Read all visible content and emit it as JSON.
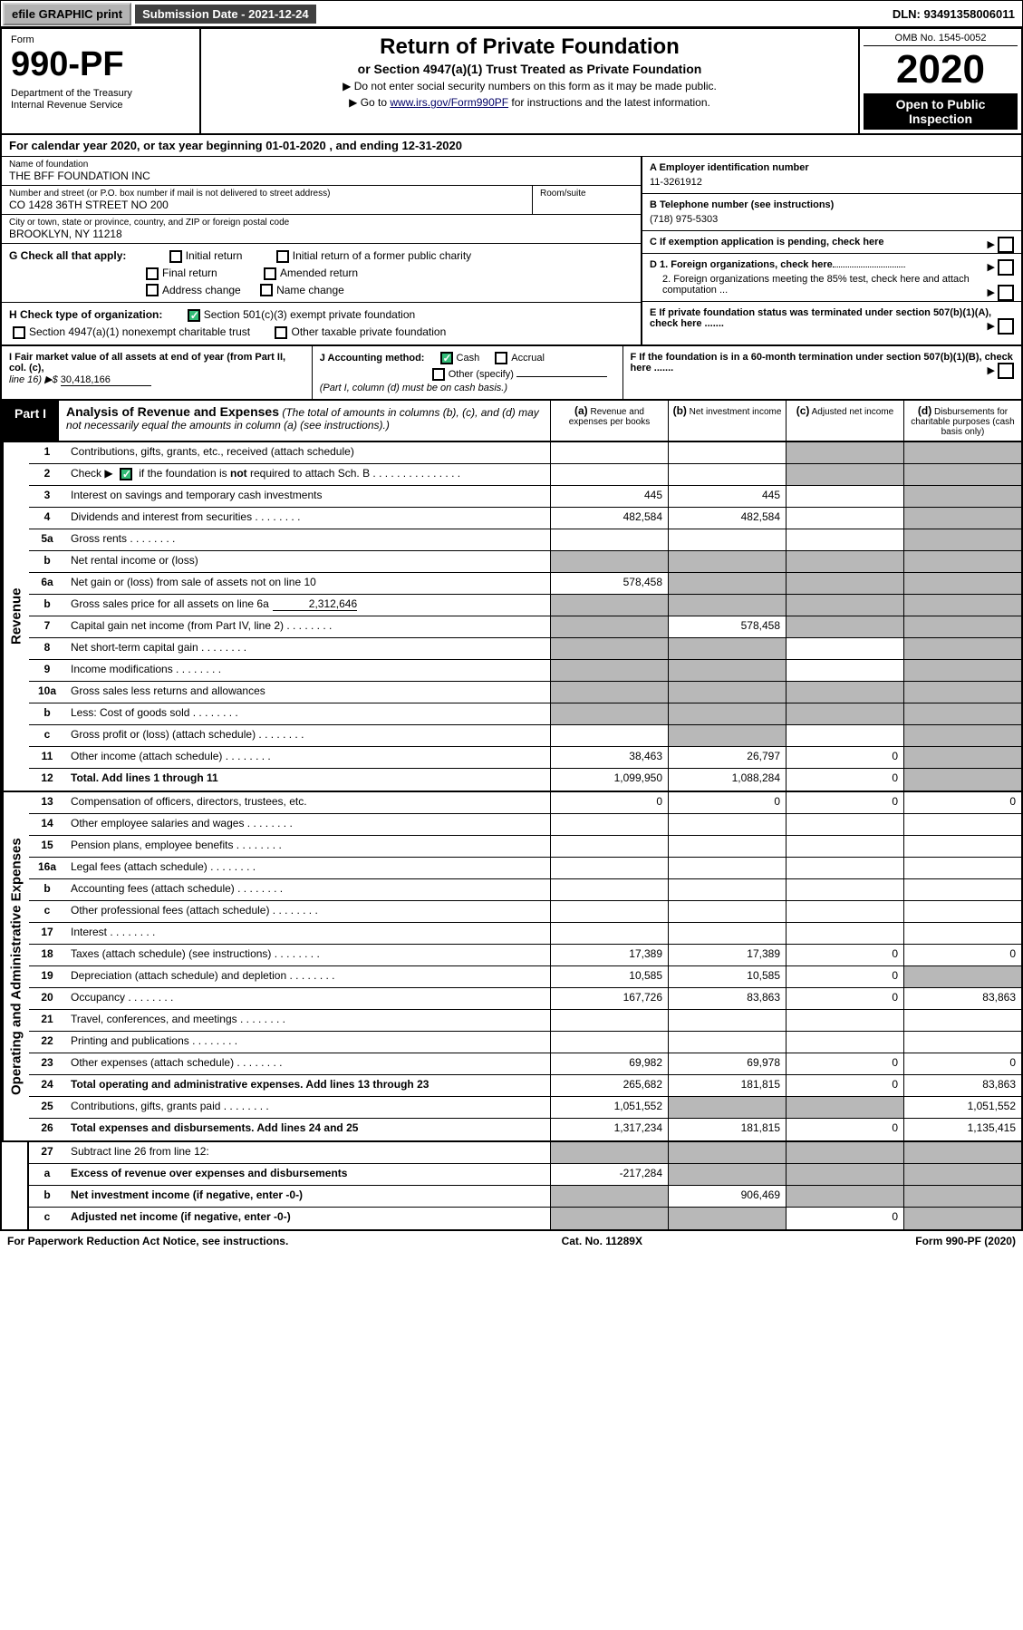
{
  "topbar": {
    "efile": "efile GRAPHIC print",
    "submission": "Submission Date - 2021-12-24",
    "dln": "DLN: 93491358006011"
  },
  "header": {
    "form_label": "Form",
    "form_number": "990-PF",
    "dept": "Department of the Treasury\nInternal Revenue Service",
    "title": "Return of Private Foundation",
    "subtitle": "or Section 4947(a)(1) Trust Treated as Private Foundation",
    "note1": "▶ Do not enter social security numbers on this form as it may be made public.",
    "note2_pre": "▶ Go to ",
    "note2_link": "www.irs.gov/Form990PF",
    "note2_post": " for instructions and the latest information.",
    "omb": "OMB No. 1545-0052",
    "year": "2020",
    "open": "Open to Public Inspection"
  },
  "cal_year": "For calendar year 2020, or tax year beginning 01-01-2020                        , and ending 12-31-2020",
  "foundation": {
    "name_label": "Name of foundation",
    "name": "THE BFF FOUNDATION INC",
    "addr_label": "Number and street (or P.O. box number if mail is not delivered to street address)",
    "addr": "CO 1428 36TH STREET NO 200",
    "room_label": "Room/suite",
    "city_label": "City or town, state or province, country, and ZIP or foreign postal code",
    "city": "BROOKLYN, NY  11218"
  },
  "ein": {
    "label": "A Employer identification number",
    "value": "11-3261912"
  },
  "phone": {
    "label": "B Telephone number (see instructions)",
    "value": "(718) 975-5303"
  },
  "boxC": "C If exemption application is pending, check here",
  "boxG": {
    "label": "G Check all that apply:",
    "opts": [
      "Initial return",
      "Initial return of a former public charity",
      "Final return",
      "Amended return",
      "Address change",
      "Name change"
    ]
  },
  "boxD": {
    "d1": "D 1. Foreign organizations, check here",
    "d2": "2. Foreign organizations meeting the 85% test, check here and attach computation ..."
  },
  "boxH": {
    "label": "H Check type of organization:",
    "opt1": "Section 501(c)(3) exempt private foundation",
    "opt2": "Section 4947(a)(1) nonexempt charitable trust",
    "opt3": "Other taxable private foundation"
  },
  "boxE": "E  If private foundation status was terminated under section 507(b)(1)(A), check here .......",
  "boxI": {
    "label": "I Fair market value of all assets at end of year (from Part II, col. (c),",
    "line": "line 16) ▶$ ",
    "value": "30,418,166"
  },
  "boxJ": {
    "label": "J Accounting method:",
    "cash": "Cash",
    "accrual": "Accrual",
    "other": "Other (specify)",
    "note": "(Part I, column (d) must be on cash basis.)"
  },
  "boxF": "F  If the foundation is in a 60-month termination under section 507(b)(1)(B), check here .......",
  "part1": {
    "label": "Part I",
    "title": "Analysis of Revenue and Expenses",
    "note": "(The total of amounts in columns (b), (c), and (d) may not necessarily equal the amounts in column (a) (see instructions).)",
    "col_a": "(a)  Revenue and expenses per books",
    "col_b": "(b)  Net investment income",
    "col_c": "(c)  Adjusted net income",
    "col_d": "(d)  Disbursements for charitable purposes (cash basis only)"
  },
  "side_rev": "Revenue",
  "side_exp": "Operating and Administrative Expenses",
  "rows": {
    "r1": {
      "no": "1",
      "desc": "Contributions, gifts, grants, etc., received (attach schedule)"
    },
    "r2": {
      "no": "2",
      "desc": "Check ▶        if the foundation is not required to attach Sch. B"
    },
    "r3": {
      "no": "3",
      "desc": "Interest on savings and temporary cash investments",
      "a": "445",
      "b": "445"
    },
    "r4": {
      "no": "4",
      "desc": "Dividends and interest from securities",
      "a": "482,584",
      "b": "482,584"
    },
    "r5a": {
      "no": "5a",
      "desc": "Gross rents"
    },
    "r5b": {
      "no": "b",
      "desc": "Net rental income or (loss)"
    },
    "r6a": {
      "no": "6a",
      "desc": "Net gain or (loss) from sale of assets not on line 10",
      "a": "578,458"
    },
    "r6b": {
      "no": "b",
      "desc": "Gross sales price for all assets on line 6a",
      "inline": "2,312,646"
    },
    "r7": {
      "no": "7",
      "desc": "Capital gain net income (from Part IV, line 2)",
      "b": "578,458"
    },
    "r8": {
      "no": "8",
      "desc": "Net short-term capital gain"
    },
    "r9": {
      "no": "9",
      "desc": "Income modifications"
    },
    "r10a": {
      "no": "10a",
      "desc": "Gross sales less returns and allowances"
    },
    "r10b": {
      "no": "b",
      "desc": "Less: Cost of goods sold"
    },
    "r10c": {
      "no": "c",
      "desc": "Gross profit or (loss) (attach schedule)"
    },
    "r11": {
      "no": "11",
      "desc": "Other income (attach schedule)",
      "a": "38,463",
      "b": "26,797",
      "c": "0"
    },
    "r12": {
      "no": "12",
      "desc": "Total. Add lines 1 through 11",
      "a": "1,099,950",
      "b": "1,088,284",
      "c": "0"
    },
    "r13": {
      "no": "13",
      "desc": "Compensation of officers, directors, trustees, etc.",
      "a": "0",
      "b": "0",
      "c": "0",
      "d": "0"
    },
    "r14": {
      "no": "14",
      "desc": "Other employee salaries and wages"
    },
    "r15": {
      "no": "15",
      "desc": "Pension plans, employee benefits"
    },
    "r16a": {
      "no": "16a",
      "desc": "Legal fees (attach schedule)"
    },
    "r16b": {
      "no": "b",
      "desc": "Accounting fees (attach schedule)"
    },
    "r16c": {
      "no": "c",
      "desc": "Other professional fees (attach schedule)"
    },
    "r17": {
      "no": "17",
      "desc": "Interest"
    },
    "r18": {
      "no": "18",
      "desc": "Taxes (attach schedule) (see instructions)",
      "a": "17,389",
      "b": "17,389",
      "c": "0",
      "d": "0"
    },
    "r19": {
      "no": "19",
      "desc": "Depreciation (attach schedule) and depletion",
      "a": "10,585",
      "b": "10,585",
      "c": "0"
    },
    "r20": {
      "no": "20",
      "desc": "Occupancy",
      "a": "167,726",
      "b": "83,863",
      "c": "0",
      "d": "83,863"
    },
    "r21": {
      "no": "21",
      "desc": "Travel, conferences, and meetings"
    },
    "r22": {
      "no": "22",
      "desc": "Printing and publications"
    },
    "r23": {
      "no": "23",
      "desc": "Other expenses (attach schedule)",
      "a": "69,982",
      "b": "69,978",
      "c": "0",
      "d": "0"
    },
    "r24": {
      "no": "24",
      "desc": "Total operating and administrative expenses. Add lines 13 through 23",
      "a": "265,682",
      "b": "181,815",
      "c": "0",
      "d": "83,863"
    },
    "r25": {
      "no": "25",
      "desc": "Contributions, gifts, grants paid",
      "a": "1,051,552",
      "d": "1,051,552"
    },
    "r26": {
      "no": "26",
      "desc": "Total expenses and disbursements. Add lines 24 and 25",
      "a": "1,317,234",
      "b": "181,815",
      "c": "0",
      "d": "1,135,415"
    },
    "r27": {
      "no": "27",
      "desc": "Subtract line 26 from line 12:"
    },
    "r27a": {
      "no": "a",
      "desc": "Excess of revenue over expenses and disbursements",
      "a": "-217,284"
    },
    "r27b": {
      "no": "b",
      "desc": "Net investment income (if negative, enter -0-)",
      "b": "906,469"
    },
    "r27c": {
      "no": "c",
      "desc": "Adjusted net income (if negative, enter -0-)",
      "c": "0"
    }
  },
  "footer": {
    "left": "For Paperwork Reduction Act Notice, see instructions.",
    "center": "Cat. No. 11289X",
    "right": "Form 990-PF (2020)"
  }
}
